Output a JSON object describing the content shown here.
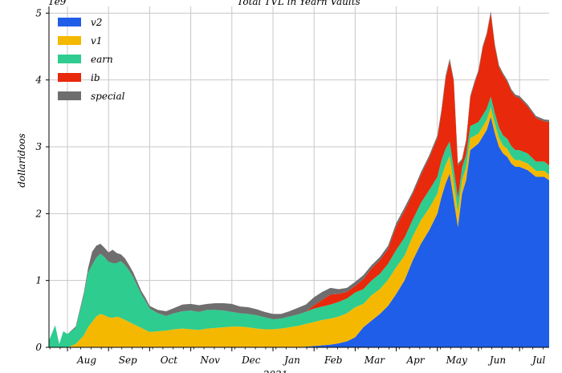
{
  "chart_data": {
    "type": "area",
    "stacked": true,
    "title": "Total TVL in Yearn Vaults",
    "ylabel": "dollaridoos",
    "y_scale_label": "1e9",
    "xlabel_year": "2021",
    "ylim": [
      0,
      5.1
    ],
    "yticks": [
      0,
      1,
      2,
      3,
      4,
      5
    ],
    "grid": true,
    "legend_placement": "top-left",
    "x_domain_months": [
      -0.45,
      11.72
    ],
    "month_ticks": [
      {
        "label": "Aug",
        "pos": 0
      },
      {
        "label": "Sep",
        "pos": 1
      },
      {
        "label": "Oct",
        "pos": 2
      },
      {
        "label": "Nov",
        "pos": 3
      },
      {
        "label": "Dec",
        "pos": 4
      },
      {
        "label": "Jan",
        "pos": 5
      },
      {
        "label": "Feb",
        "pos": 6
      },
      {
        "label": "Mar",
        "pos": 7
      },
      {
        "label": "Apr",
        "pos": 8
      },
      {
        "label": "May",
        "pos": 9
      },
      {
        "label": "Jun",
        "pos": 10
      },
      {
        "label": "Jul",
        "pos": 11
      }
    ],
    "x": [
      -0.45,
      -0.3,
      -0.2,
      -0.1,
      0,
      0.2,
      0.4,
      0.5,
      0.6,
      0.7,
      0.8,
      0.9,
      1.0,
      1.1,
      1.2,
      1.3,
      1.4,
      1.5,
      1.6,
      1.7,
      1.8,
      1.9,
      2.0,
      2.2,
      2.4,
      2.6,
      2.8,
      3.0,
      3.2,
      3.4,
      3.6,
      3.8,
      4.0,
      4.2,
      4.4,
      4.6,
      4.8,
      5.0,
      5.2,
      5.4,
      5.6,
      5.8,
      6.0,
      6.2,
      6.4,
      6.6,
      6.8,
      7.0,
      7.2,
      7.4,
      7.6,
      7.8,
      8.0,
      8.2,
      8.4,
      8.6,
      8.8,
      9.0,
      9.1,
      9.2,
      9.3,
      9.4,
      9.5,
      9.6,
      9.7,
      9.8,
      9.9,
      10.0,
      10.1,
      10.2,
      10.3,
      10.4,
      10.5,
      10.6,
      10.7,
      10.8,
      10.9,
      11.0,
      11.2,
      11.4,
      11.6,
      11.72
    ],
    "series": [
      {
        "name": "v2",
        "color": "#1f5ee8",
        "values": [
          0,
          0,
          0,
          0,
          0,
          0,
          0,
          0,
          0,
          0,
          0,
          0,
          0,
          0,
          0,
          0,
          0,
          0,
          0,
          0,
          0,
          0,
          0,
          0,
          0,
          0,
          0,
          0,
          0,
          0,
          0,
          0,
          0,
          0,
          0,
          0,
          0,
          0,
          0,
          0,
          0,
          0.01,
          0.02,
          0.03,
          0.04,
          0.06,
          0.09,
          0.15,
          0.3,
          0.4,
          0.5,
          0.62,
          0.8,
          1.0,
          1.3,
          1.55,
          1.75,
          2.0,
          2.25,
          2.45,
          2.6,
          2.2,
          1.8,
          2.3,
          2.5,
          2.95,
          3.0,
          3.05,
          3.15,
          3.25,
          3.45,
          3.2,
          3.0,
          2.9,
          2.85,
          2.75,
          2.7,
          2.7,
          2.65,
          2.55,
          2.55,
          2.5
        ]
      },
      {
        "name": "v1",
        "color": "#f5b800",
        "values": [
          0,
          0,
          0,
          0,
          0,
          0.05,
          0.18,
          0.3,
          0.38,
          0.46,
          0.5,
          0.48,
          0.45,
          0.44,
          0.46,
          0.44,
          0.41,
          0.38,
          0.35,
          0.32,
          0.29,
          0.26,
          0.23,
          0.24,
          0.25,
          0.27,
          0.28,
          0.27,
          0.26,
          0.28,
          0.29,
          0.3,
          0.31,
          0.31,
          0.3,
          0.28,
          0.27,
          0.27,
          0.28,
          0.3,
          0.32,
          0.34,
          0.36,
          0.38,
          0.39,
          0.4,
          0.42,
          0.45,
          0.35,
          0.38,
          0.37,
          0.39,
          0.4,
          0.37,
          0.36,
          0.35,
          0.33,
          0.3,
          0.3,
          0.28,
          0.26,
          0.25,
          0.22,
          0.2,
          0.19,
          0.18,
          0.16,
          0.15,
          0.15,
          0.15,
          0.14,
          0.14,
          0.13,
          0.12,
          0.12,
          0.11,
          0.1,
          0.1,
          0.1,
          0.09,
          0.09,
          0.08
        ]
      },
      {
        "name": "earn",
        "color": "#2ecc8f",
        "values": [
          0.1,
          0.33,
          0.05,
          0.24,
          0.2,
          0.24,
          0.6,
          0.82,
          0.85,
          0.88,
          0.9,
          0.87,
          0.83,
          0.82,
          0.8,
          0.85,
          0.82,
          0.77,
          0.7,
          0.6,
          0.5,
          0.43,
          0.35,
          0.27,
          0.22,
          0.24,
          0.26,
          0.28,
          0.27,
          0.28,
          0.27,
          0.25,
          0.22,
          0.2,
          0.2,
          0.2,
          0.18,
          0.15,
          0.15,
          0.16,
          0.17,
          0.18,
          0.2,
          0.2,
          0.21,
          0.22,
          0.22,
          0.22,
          0.22,
          0.22,
          0.23,
          0.24,
          0.26,
          0.27,
          0.25,
          0.26,
          0.27,
          0.25,
          0.25,
          0.24,
          0.22,
          0.22,
          0.2,
          0.19,
          0.19,
          0.18,
          0.18,
          0.17,
          0.17,
          0.17,
          0.16,
          0.16,
          0.16,
          0.15,
          0.15,
          0.15,
          0.15,
          0.15,
          0.15,
          0.14,
          0.14,
          0.14
        ]
      },
      {
        "name": "ib",
        "color": "#e8290b",
        "values": [
          0,
          0,
          0,
          0,
          0,
          0,
          0,
          0,
          0,
          0,
          0,
          0,
          0,
          0,
          0,
          0,
          0,
          0,
          0,
          0,
          0,
          0,
          0,
          0,
          0,
          0,
          0,
          0,
          0,
          0,
          0,
          0,
          0,
          0,
          0,
          0,
          0,
          0,
          0,
          0,
          0,
          0,
          0.05,
          0.1,
          0.15,
          0.12,
          0.1,
          0.1,
          0.15,
          0.18,
          0.2,
          0.22,
          0.35,
          0.4,
          0.38,
          0.42,
          0.48,
          0.58,
          0.72,
          1.05,
          1.2,
          1.3,
          0.5,
          0.1,
          0.2,
          0.42,
          0.6,
          0.75,
          1.0,
          1.1,
          1.25,
          1.0,
          0.9,
          0.9,
          0.85,
          0.82,
          0.8,
          0.78,
          0.7,
          0.65,
          0.6,
          0.65
        ]
      },
      {
        "name": "special",
        "color": "#6e6e6e",
        "values": [
          0,
          0,
          0,
          0,
          0,
          0.02,
          0.04,
          0.06,
          0.2,
          0.18,
          0.15,
          0.14,
          0.14,
          0.2,
          0.15,
          0.1,
          0.1,
          0.08,
          0.07,
          0.06,
          0.05,
          0.05,
          0.04,
          0.05,
          0.07,
          0.08,
          0.1,
          0.1,
          0.1,
          0.09,
          0.1,
          0.11,
          0.12,
          0.1,
          0.1,
          0.09,
          0.08,
          0.08,
          0.07,
          0.08,
          0.1,
          0.11,
          0.12,
          0.12,
          0.1,
          0.07,
          0.06,
          0.06,
          0.06,
          0.05,
          0.05,
          0.05,
          0.05,
          0.05,
          0.04,
          0.04,
          0.04,
          0.04,
          0.04,
          0.04,
          0.04,
          0.03,
          0.03,
          0.03,
          0.03,
          0.03,
          0.03,
          0.03,
          0.03,
          0.03,
          0.03,
          0.03,
          0.03,
          0.03,
          0.03,
          0.03,
          0.03,
          0.03,
          0.03,
          0.03,
          0.03,
          0.03
        ]
      }
    ]
  }
}
